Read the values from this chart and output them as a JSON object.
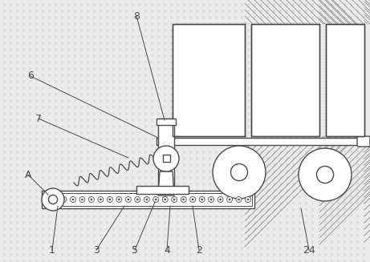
{
  "bg_color": "#ebebeb",
  "line_color": "#4a4a4a",
  "fig_width": 4.61,
  "fig_height": 3.27,
  "dpi": 100,
  "label_fontsize": 9,
  "annotations": [
    [
      "8",
      170,
      20,
      205,
      150
    ],
    [
      "6",
      38,
      95,
      197,
      172
    ],
    [
      "7",
      48,
      148,
      160,
      197
    ],
    [
      "A",
      35,
      218,
      60,
      243
    ],
    [
      "1",
      65,
      312,
      72,
      257
    ],
    [
      "3",
      120,
      312,
      155,
      257
    ],
    [
      "5",
      168,
      312,
      193,
      252
    ],
    [
      "4",
      208,
      312,
      212,
      257
    ],
    [
      "2",
      248,
      312,
      240,
      257
    ],
    [
      "24",
      385,
      312,
      375,
      260
    ]
  ]
}
